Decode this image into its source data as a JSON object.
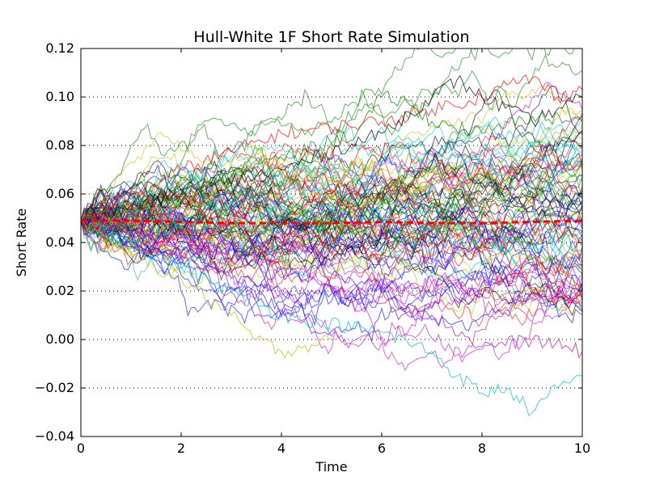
{
  "chart_data": {
    "type": "line",
    "title": "Hull-White 1F Short Rate Simulation",
    "xlabel": "Time",
    "ylabel": "Short Rate",
    "xlim": [
      0,
      10
    ],
    "ylim": [
      -0.04,
      0.12
    ],
    "xticks": [
      "0",
      "2",
      "4",
      "6",
      "8",
      "10"
    ],
    "yticks": [
      "0.12",
      "0.10",
      "0.08",
      "0.06",
      "0.04",
      "0.02",
      "0.00",
      "−0.02",
      "−0.04"
    ],
    "grid": "horizontal dotted",
    "initial_rate": 0.049,
    "path_count": 100,
    "time_steps": 150,
    "colors": [
      "#0000ff",
      "#008000",
      "#ff0000",
      "#00bfbf",
      "#bf00bf",
      "#bfbf00",
      "#000000"
    ],
    "mean_path": {
      "color": "#ff0000",
      "style": "dashed",
      "x": [
        0,
        1,
        2,
        3,
        4,
        5,
        6,
        7,
        8,
        9,
        10
      ],
      "y": [
        0.049,
        0.049,
        0.0485,
        0.048,
        0.048,
        0.048,
        0.0485,
        0.048,
        0.048,
        0.0485,
        0.049
      ]
    },
    "highlighted_paths": [
      {
        "color": "#00bfbf",
        "x": [
          0,
          2,
          4,
          6,
          7,
          7.5,
          8,
          8.5,
          9,
          9.5,
          10
        ],
        "y": [
          0.049,
          0.03,
          0.01,
          0.003,
          -0.005,
          -0.015,
          -0.022,
          -0.02,
          -0.03,
          -0.02,
          -0.015
        ]
      },
      {
        "color": "#ff0000",
        "x": [
          0,
          2,
          4,
          6,
          7,
          8,
          8.5,
          9,
          9.5,
          10
        ],
        "y": [
          0.049,
          0.07,
          0.085,
          0.09,
          0.095,
          0.1,
          0.105,
          0.108,
          0.1,
          0.103
        ]
      },
      {
        "color": "#000000",
        "x": [
          0,
          2,
          4,
          6,
          7,
          7.5,
          8,
          9,
          10
        ],
        "y": [
          0.049,
          0.06,
          0.07,
          0.085,
          0.1,
          0.107,
          0.1,
          0.09,
          0.1
        ]
      },
      {
        "color": "#008000",
        "x": [
          0,
          2,
          4,
          5.5,
          6,
          6.5,
          7,
          8,
          9,
          10
        ],
        "y": [
          0.049,
          0.06,
          0.075,
          0.085,
          0.1,
          0.098,
          0.09,
          0.085,
          0.092,
          0.09
        ]
      },
      {
        "color": "#bf00bf",
        "x": [
          0,
          2,
          4,
          6,
          7,
          8,
          9,
          10
        ],
        "y": [
          0.049,
          0.04,
          0.03,
          0.015,
          0.01,
          -0.003,
          0.0,
          -0.005
        ]
      },
      {
        "color": "#bfbf00",
        "x": [
          0,
          1,
          2,
          3,
          3.5,
          4,
          5
        ],
        "y": [
          0.049,
          0.035,
          0.025,
          0.01,
          0.0,
          -0.005,
          0.0
        ]
      }
    ]
  }
}
